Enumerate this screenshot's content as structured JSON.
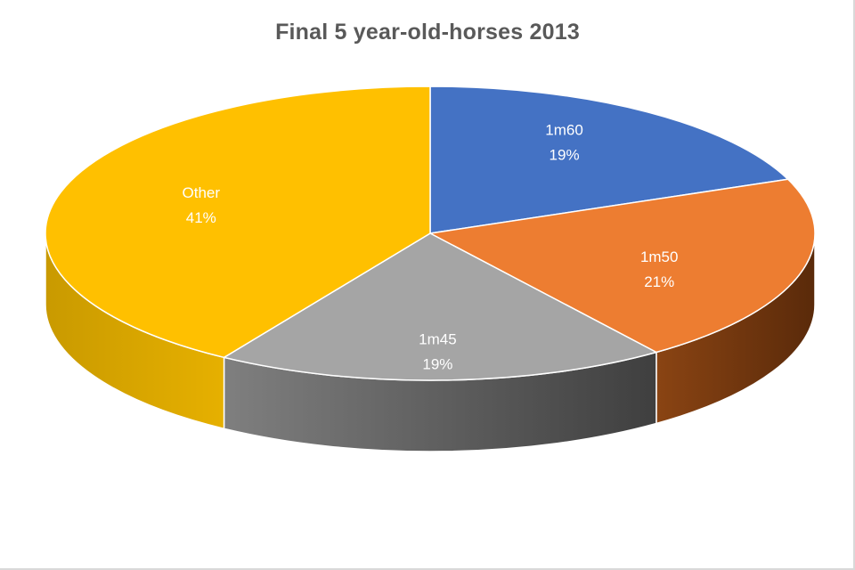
{
  "chart_data": {
    "type": "pie",
    "title": "Final 5 year-old-horses 2013",
    "categories": [
      "1m60",
      "1m50",
      "1m45",
      "Other"
    ],
    "values": [
      19,
      21,
      19,
      41
    ],
    "value_labels": [
      "19%",
      "21%",
      "19%",
      "41%"
    ],
    "colors": [
      "#4472C4",
      "#ED7D31",
      "#A5A5A5",
      "#FFC000"
    ],
    "style": "3d",
    "legend": "none"
  }
}
